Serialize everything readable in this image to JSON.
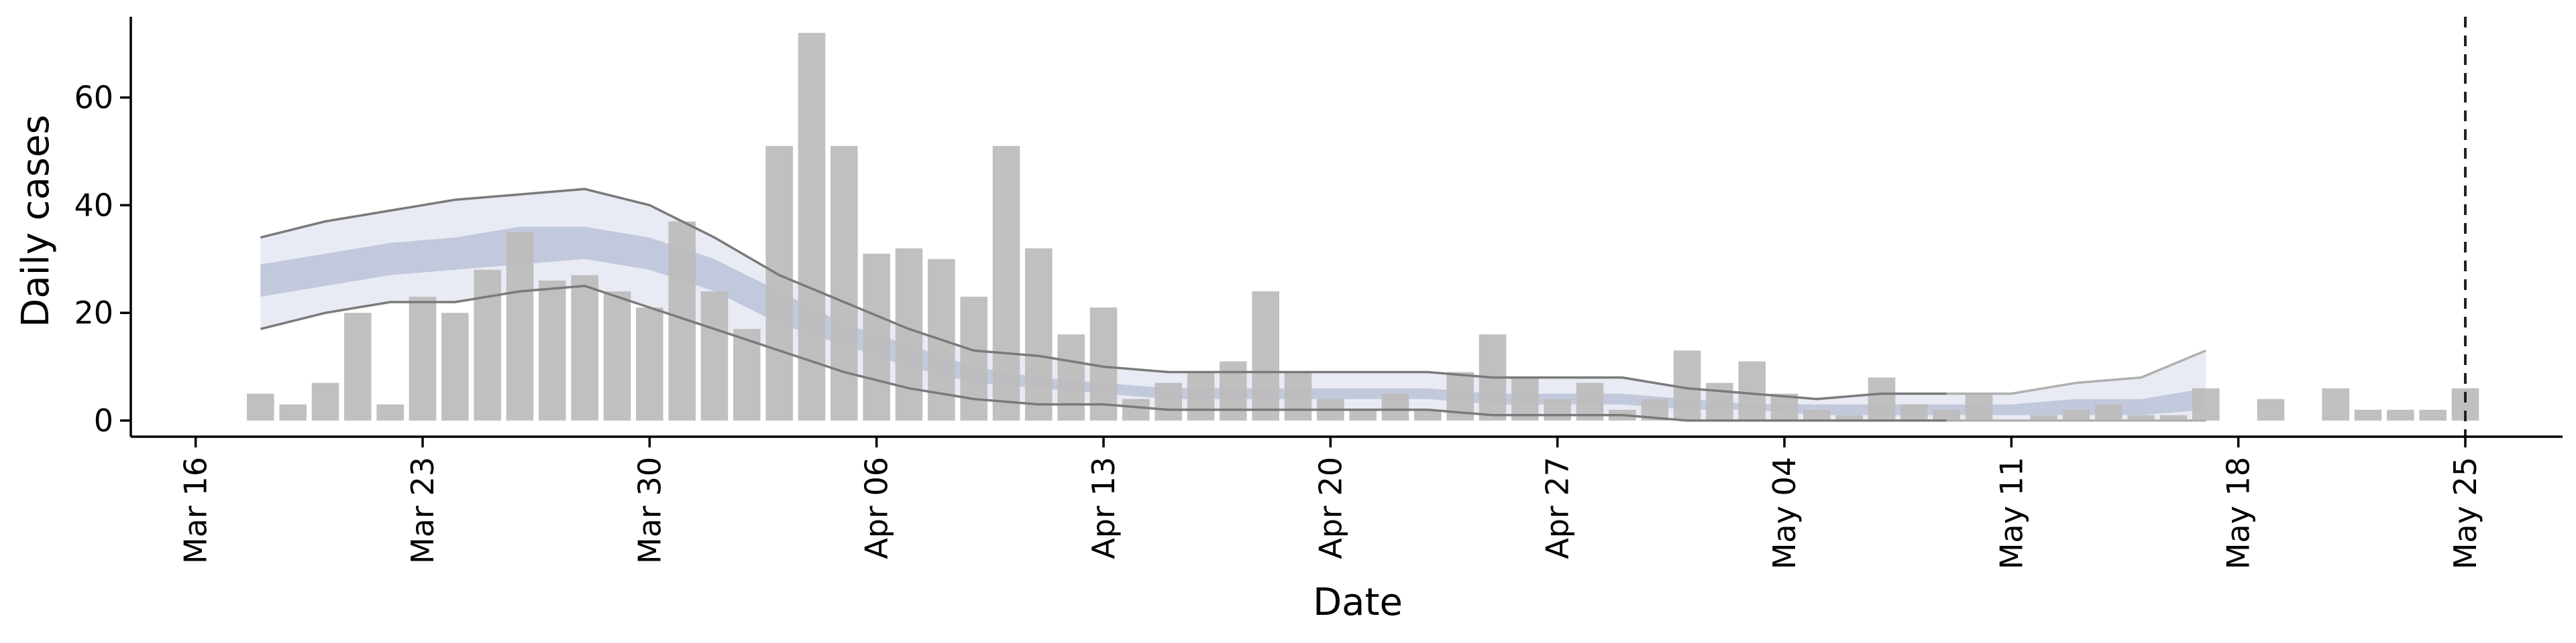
{
  "chart_data": {
    "type": "bar",
    "xlabel": "Date",
    "ylabel": "Daily cases",
    "x_axis_type": "date",
    "xlim": [
      "2020-03-14",
      "2020-05-28"
    ],
    "ylim": [
      -3,
      75
    ],
    "x_ticks": [
      {
        "date": "2020-03-16",
        "label": "Mar 16"
      },
      {
        "date": "2020-03-23",
        "label": "Mar 23"
      },
      {
        "date": "2020-03-30",
        "label": "Mar 30"
      },
      {
        "date": "2020-04-06",
        "label": "Apr 06"
      },
      {
        "date": "2020-04-13",
        "label": "Apr 13"
      },
      {
        "date": "2020-04-20",
        "label": "Apr 20"
      },
      {
        "date": "2020-04-27",
        "label": "Apr 27"
      },
      {
        "date": "2020-05-04",
        "label": "May 04"
      },
      {
        "date": "2020-05-11",
        "label": "May 11"
      },
      {
        "date": "2020-05-18",
        "label": "May 18"
      },
      {
        "date": "2020-05-25",
        "label": "May 25"
      }
    ],
    "y_ticks": [
      0,
      20,
      40,
      60
    ],
    "grid": false,
    "vertical_line": {
      "date": "2020-05-25",
      "style": "dashed"
    },
    "colors": {
      "bars": "#bdbdbd",
      "outer_band": "#e9ebf4",
      "inner_band": "#c3c9dc",
      "outer_bound_line": "#7a7a7a",
      "outer_bound_line_late": "#b0b0b0",
      "dashed_line": "#222222"
    },
    "bars": {
      "dates": [
        "2020-03-18",
        "2020-03-19",
        "2020-03-20",
        "2020-03-21",
        "2020-03-22",
        "2020-03-23",
        "2020-03-24",
        "2020-03-25",
        "2020-03-26",
        "2020-03-27",
        "2020-03-28",
        "2020-03-29",
        "2020-03-30",
        "2020-03-31",
        "2020-04-01",
        "2020-04-02",
        "2020-04-03",
        "2020-04-04",
        "2020-04-05",
        "2020-04-06",
        "2020-04-07",
        "2020-04-08",
        "2020-04-09",
        "2020-04-10",
        "2020-04-11",
        "2020-04-12",
        "2020-04-13",
        "2020-04-14",
        "2020-04-15",
        "2020-04-16",
        "2020-04-17",
        "2020-04-18",
        "2020-04-19",
        "2020-04-20",
        "2020-04-21",
        "2020-04-22",
        "2020-04-23",
        "2020-04-24",
        "2020-04-25",
        "2020-04-26",
        "2020-04-27",
        "2020-04-28",
        "2020-04-29",
        "2020-04-30",
        "2020-05-01",
        "2020-05-02",
        "2020-05-03",
        "2020-05-04",
        "2020-05-05",
        "2020-05-06",
        "2020-05-07",
        "2020-05-08",
        "2020-05-09",
        "2020-05-10",
        "2020-05-11",
        "2020-05-12",
        "2020-05-13",
        "2020-05-14",
        "2020-05-15",
        "2020-05-16",
        "2020-05-17",
        "2020-05-18",
        "2020-05-19",
        "2020-05-20",
        "2020-05-21",
        "2020-05-22",
        "2020-05-23",
        "2020-05-24",
        "2020-05-25"
      ],
      "values": [
        5,
        3,
        7,
        20,
        3,
        23,
        20,
        28,
        35,
        26,
        27,
        24,
        21,
        37,
        24,
        17,
        51,
        72,
        51,
        31,
        32,
        30,
        23,
        51,
        32,
        16,
        21,
        4,
        7,
        9,
        11,
        24,
        9,
        4,
        2,
        5,
        2,
        9,
        16,
        8,
        4,
        7,
        2,
        4,
        13,
        7,
        11,
        5,
        2,
        1,
        8,
        3,
        2,
        5,
        0,
        1,
        2,
        3,
        1,
        1,
        6,
        0,
        4,
        0,
        6,
        2,
        2,
        2,
        6
      ]
    },
    "bands": {
      "dates": [
        "2020-03-18",
        "2020-03-20",
        "2020-03-22",
        "2020-03-24",
        "2020-03-26",
        "2020-03-28",
        "2020-03-30",
        "2020-04-01",
        "2020-04-03",
        "2020-04-05",
        "2020-04-07",
        "2020-04-09",
        "2020-04-11",
        "2020-04-13",
        "2020-04-15",
        "2020-04-17",
        "2020-04-19",
        "2020-04-21",
        "2020-04-23",
        "2020-04-25",
        "2020-04-27",
        "2020-04-29",
        "2020-05-01",
        "2020-05-03",
        "2020-05-05",
        "2020-05-07",
        "2020-05-09",
        "2020-05-11",
        "2020-05-13",
        "2020-05-15",
        "2020-05-17"
      ],
      "outer_upper": [
        34,
        37,
        39,
        41,
        42,
        43,
        40,
        34,
        27,
        22,
        17,
        13,
        12,
        10,
        9,
        9,
        9,
        9,
        9,
        8,
        8,
        8,
        6,
        5,
        4,
        5,
        5,
        5,
        7,
        8,
        13
      ],
      "outer_lower": [
        17,
        20,
        22,
        22,
        24,
        25,
        21,
        17,
        13,
        9,
        6,
        4,
        3,
        3,
        2,
        2,
        2,
        2,
        2,
        1,
        1,
        1,
        0,
        0,
        0,
        0,
        0,
        0,
        0,
        0,
        0
      ],
      "inner_upper": [
        29,
        31,
        33,
        34,
        36,
        36,
        34,
        30,
        24,
        18,
        14,
        10,
        8,
        7,
        6,
        6,
        6,
        6,
        6,
        5,
        5,
        5,
        4,
        3,
        3,
        3,
        3,
        3,
        4,
        4,
        6
      ],
      "inner_lower": [
        23,
        25,
        27,
        28,
        29,
        30,
        28,
        24,
        18,
        14,
        10,
        7,
        6,
        5,
        4,
        4,
        4,
        4,
        4,
        3,
        3,
        3,
        2,
        2,
        1,
        1,
        1,
        1,
        1,
        1,
        2
      ]
    }
  }
}
